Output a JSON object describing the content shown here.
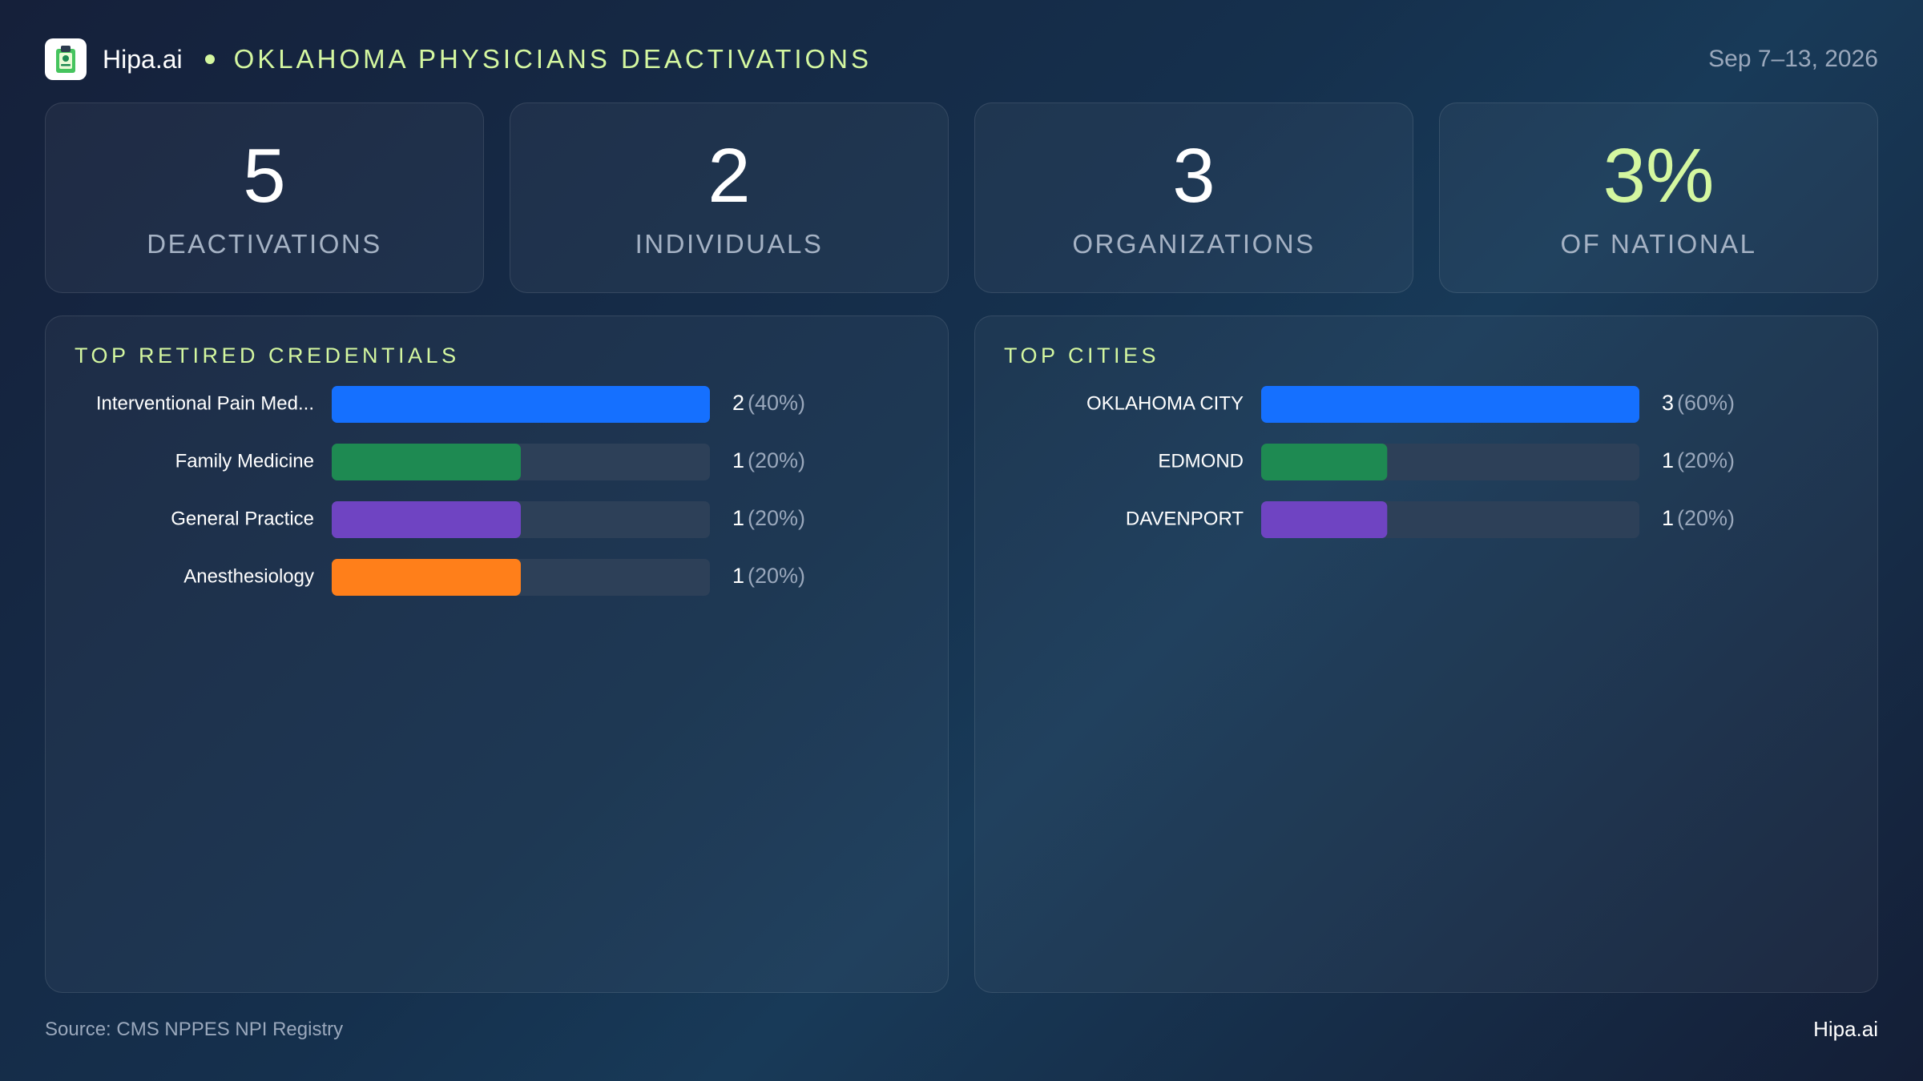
{
  "header": {
    "brand": "Hipa.ai",
    "title": "OKLAHOMA PHYSICIANS DEACTIVATIONS",
    "date_range": "Sep 7–13, 2026",
    "logo_icon": "clipboard-icon"
  },
  "stats": [
    {
      "value": "5",
      "label": "DEACTIVATIONS"
    },
    {
      "value": "2",
      "label": "INDIVIDUALS"
    },
    {
      "value": "3",
      "label": "ORGANIZATIONS"
    },
    {
      "value": "3%",
      "label": "OF NATIONAL",
      "accent": true
    }
  ],
  "colors": {
    "accent": "#d4f7a0",
    "track": "#2d4058",
    "series": [
      "#1570ff",
      "#1e8a52",
      "#6f44c2",
      "#ff7f1a"
    ]
  },
  "chart_data": [
    {
      "type": "bar",
      "orientation": "horizontal",
      "title": "TOP RETIRED CREDENTIALS",
      "categories": [
        "Interventional Pain Med...",
        "Family Medicine",
        "General Practice",
        "Anesthesiology"
      ],
      "values": [
        2,
        1,
        1,
        1
      ],
      "percent_labels": [
        "(40%)",
        "(20%)",
        "(20%)",
        "(20%)"
      ],
      "xlim": [
        0,
        2
      ],
      "grid": false
    },
    {
      "type": "bar",
      "orientation": "horizontal",
      "title": "TOP CITIES",
      "categories": [
        "OKLAHOMA CITY",
        "EDMOND",
        "DAVENPORT"
      ],
      "values": [
        3,
        1,
        1
      ],
      "percent_labels": [
        "(60%)",
        "(20%)",
        "(20%)"
      ],
      "xlim": [
        0,
        3
      ],
      "grid": false
    }
  ],
  "footer": {
    "source": "Source: CMS NPPES NPI Registry",
    "brand": "Hipa.ai"
  }
}
